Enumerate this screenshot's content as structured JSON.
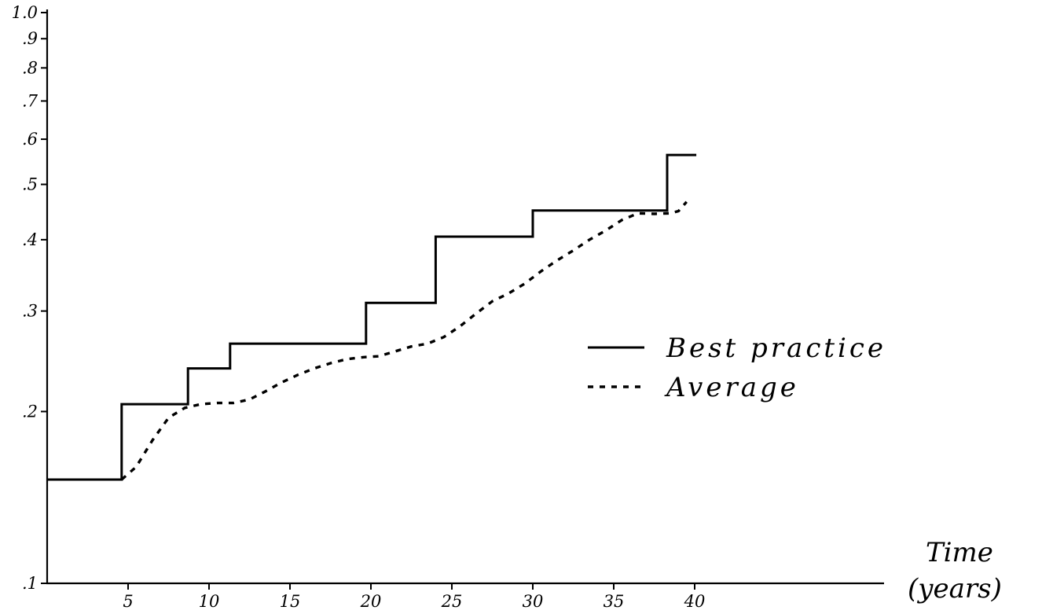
{
  "chart_data": {
    "type": "line",
    "title": "",
    "xlabel": "Time",
    "xlabel_units": "(years)",
    "ylabel": "",
    "y_scale": "log",
    "ylim": [
      0.1,
      1.0
    ],
    "xlim": [
      0,
      43
    ],
    "grid": false,
    "legend_position": "right-center",
    "x_ticks": [
      {
        "value": 5,
        "label": "5"
      },
      {
        "value": 10,
        "label": "10"
      },
      {
        "value": 15,
        "label": "15"
      },
      {
        "value": 20,
        "label": "20"
      },
      {
        "value": 25,
        "label": "25"
      },
      {
        "value": 30,
        "label": "30"
      },
      {
        "value": 35,
        "label": "35"
      },
      {
        "value": 40,
        "label": "40"
      }
    ],
    "y_ticks": [
      {
        "value": 0.1,
        "label": ".1"
      },
      {
        "value": 0.2,
        "label": ".2"
      },
      {
        "value": 0.3,
        "label": ".3"
      },
      {
        "value": 0.4,
        "label": ".4"
      },
      {
        "value": 0.5,
        "label": ".5"
      },
      {
        "value": 0.6,
        "label": ".6"
      },
      {
        "value": 0.7,
        "label": ".7"
      },
      {
        "value": 0.8,
        "label": ".8"
      },
      {
        "value": 0.9,
        "label": ".9"
      },
      {
        "value": 1.0,
        "label": "1.0"
      }
    ],
    "series": [
      {
        "name": "Best practice",
        "style": "solid",
        "color": "#000000",
        "x": [
          0,
          4.6,
          4.6,
          8.7,
          8.7,
          11.3,
          11.3,
          19.7,
          19.7,
          24.0,
          24.0,
          30.0,
          30.0,
          38.3,
          38.3,
          40.1
        ],
        "y": [
          0.152,
          0.152,
          0.206,
          0.206,
          0.238,
          0.238,
          0.263,
          0.263,
          0.31,
          0.31,
          0.405,
          0.405,
          0.45,
          0.45,
          0.563,
          0.563
        ]
      },
      {
        "name": "Average",
        "style": "dashed",
        "color": "#000000",
        "x": [
          4.6,
          5.5,
          6.5,
          7.5,
          8.5,
          9.5,
          10.5,
          11.5,
          12.5,
          13.5,
          14.5,
          15.5,
          16.5,
          17.5,
          18.5,
          19.5,
          20.5,
          21.5,
          22.5,
          23.5,
          24.5,
          25.5,
          26.5,
          27.5,
          28.5,
          29.5,
          30.5,
          31.5,
          32.5,
          33.5,
          34.5,
          35.5,
          36.5,
          37.5,
          38.5,
          39.0,
          39.5
        ],
        "y": [
          0.152,
          0.16,
          0.178,
          0.195,
          0.203,
          0.206,
          0.207,
          0.207,
          0.21,
          0.217,
          0.225,
          0.232,
          0.238,
          0.243,
          0.247,
          0.249,
          0.25,
          0.255,
          0.26,
          0.263,
          0.27,
          0.282,
          0.297,
          0.312,
          0.322,
          0.335,
          0.352,
          0.368,
          0.383,
          0.4,
          0.415,
          0.433,
          0.445,
          0.444,
          0.445,
          0.449,
          0.466
        ]
      }
    ]
  }
}
